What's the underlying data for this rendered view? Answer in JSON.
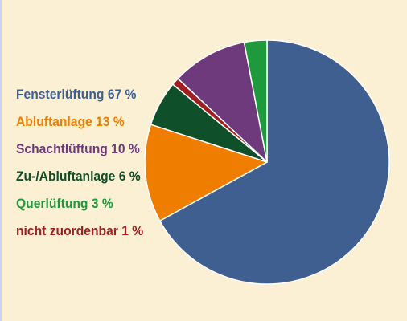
{
  "chart_data": {
    "type": "pie",
    "title": "",
    "slices": [
      {
        "label": "Fensterlüftung 67 %",
        "value": 67,
        "color": "#3f5f90"
      },
      {
        "label": "Abluftanlage 13 %",
        "value": 13,
        "color": "#ee7d00"
      },
      {
        "label": "Zu-/Abluftanlage 6 %",
        "value": 6,
        "color": "#0f4f2a"
      },
      {
        "label": "nicht zuordenbar 1 %",
        "value": 1,
        "color": "#a01d20"
      },
      {
        "label": "Schachtlüftung 10 %",
        "value": 10,
        "color": "#6e3a7c"
      },
      {
        "label": "Querlüftung 3 %",
        "value": 3,
        "color": "#1e9a3c"
      }
    ],
    "legend": {
      "placement": "left",
      "order": [
        "Fensterlüftung 67 %",
        "Abluftanlage 13 %",
        "Schachtlüftung 10 %",
        "Zu-/Abluftanlage 6 %",
        "Querlüftung 3 %",
        "nicht zuordenbar 1 %"
      ]
    }
  }
}
